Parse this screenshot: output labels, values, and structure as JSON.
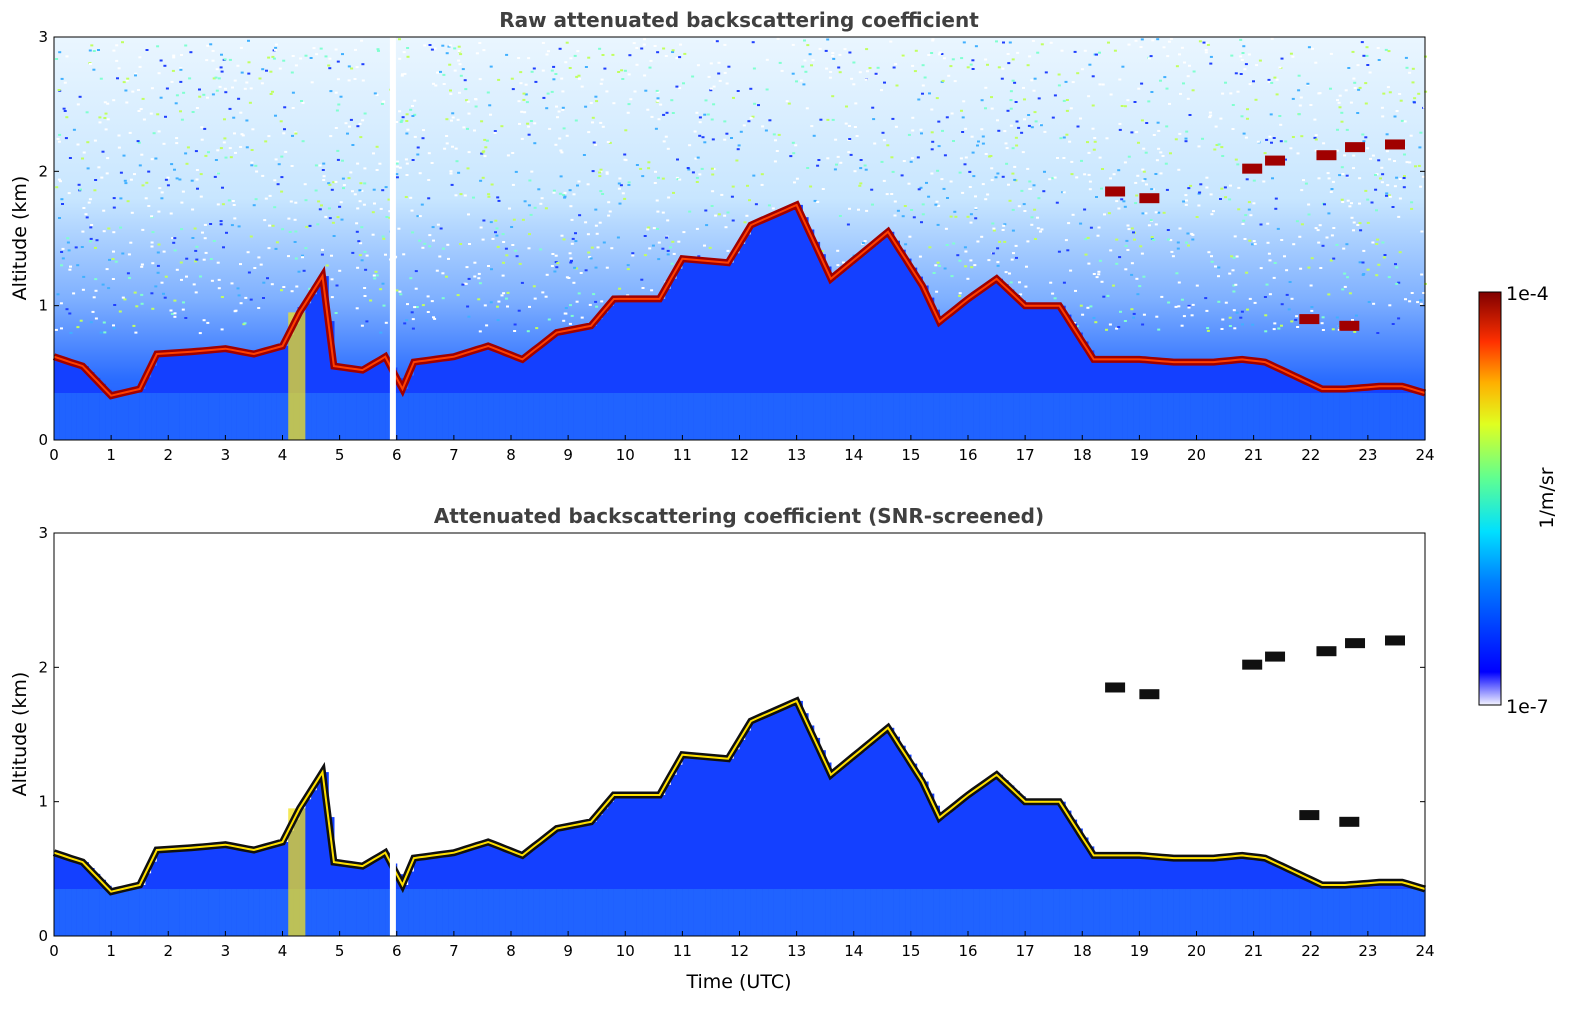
{
  "chart_data": [
    {
      "type": "heatmap",
      "title": "Raw attenuated backscattering coefficient",
      "xlabel": "",
      "ylabel": "Altitude (km)",
      "xlim": [
        0,
        24
      ],
      "ylim": [
        0,
        3
      ],
      "x_ticks": [
        "0",
        "1",
        "2",
        "3",
        "4",
        "5",
        "6",
        "7",
        "8",
        "9",
        "10",
        "11",
        "12",
        "13",
        "14",
        "15",
        "16",
        "17",
        "18",
        "19",
        "20",
        "21",
        "22",
        "23",
        "24"
      ],
      "y_ticks": [
        "0",
        "1",
        "2",
        "3"
      ],
      "screened": false,
      "layer_top_km": [
        [
          0,
          0.62
        ],
        [
          0.5,
          0.55
        ],
        [
          1,
          0.33
        ],
        [
          1.5,
          0.38
        ],
        [
          1.8,
          0.64
        ],
        [
          2.5,
          0.66
        ],
        [
          3,
          0.68
        ],
        [
          3.5,
          0.64
        ],
        [
          4,
          0.7
        ],
        [
          4.3,
          0.95
        ],
        [
          4.7,
          1.22
        ],
        [
          4.9,
          0.55
        ],
        [
          5.4,
          0.52
        ],
        [
          5.8,
          0.62
        ],
        [
          6.1,
          0.38
        ],
        [
          6.3,
          0.58
        ],
        [
          7,
          0.62
        ],
        [
          7.6,
          0.7
        ],
        [
          8.2,
          0.6
        ],
        [
          8.8,
          0.8
        ],
        [
          9.4,
          0.85
        ],
        [
          9.8,
          1.05
        ],
        [
          10.6,
          1.05
        ],
        [
          11,
          1.35
        ],
        [
          11.8,
          1.32
        ],
        [
          12.2,
          1.6
        ],
        [
          13,
          1.75
        ],
        [
          13.6,
          1.2
        ],
        [
          14.6,
          1.55
        ],
        [
          15.2,
          1.15
        ],
        [
          15.5,
          0.88
        ],
        [
          16,
          1.05
        ],
        [
          16.5,
          1.2
        ],
        [
          17,
          1.0
        ],
        [
          17.6,
          1.0
        ],
        [
          18.2,
          0.6
        ],
        [
          19,
          0.6
        ],
        [
          19.6,
          0.58
        ],
        [
          20.3,
          0.58
        ],
        [
          20.8,
          0.6
        ],
        [
          21.2,
          0.58
        ],
        [
          21.6,
          0.5
        ],
        [
          22.2,
          0.38
        ],
        [
          22.6,
          0.38
        ],
        [
          23.2,
          0.4
        ],
        [
          23.6,
          0.4
        ],
        [
          24,
          0.35
        ]
      ],
      "elevated_layers_km": [
        [
          18.4,
          1.85
        ],
        [
          19.0,
          1.8
        ],
        [
          20.8,
          2.02
        ],
        [
          21.2,
          2.08
        ],
        [
          22.1,
          2.12
        ],
        [
          22.6,
          2.18
        ],
        [
          23.3,
          2.2
        ],
        [
          21.8,
          0.9
        ],
        [
          22.5,
          0.85
        ]
      ]
    },
    {
      "type": "heatmap",
      "title": "Attenuated backscattering coefficient (SNR-screened)",
      "xlabel": "Time (UTC)",
      "ylabel": "Altitude (km)",
      "xlim": [
        0,
        24
      ],
      "ylim": [
        0,
        3
      ],
      "x_ticks": [
        "0",
        "1",
        "2",
        "3",
        "4",
        "5",
        "6",
        "7",
        "8",
        "9",
        "10",
        "11",
        "12",
        "13",
        "14",
        "15",
        "16",
        "17",
        "18",
        "19",
        "20",
        "21",
        "22",
        "23",
        "24"
      ],
      "y_ticks": [
        "0",
        "1",
        "2",
        "3"
      ],
      "screened": true
    }
  ],
  "colorbar": {
    "label": "1/m/sr",
    "max_label": "1e-4",
    "min_label": "1e-7",
    "colormap": "jet"
  }
}
